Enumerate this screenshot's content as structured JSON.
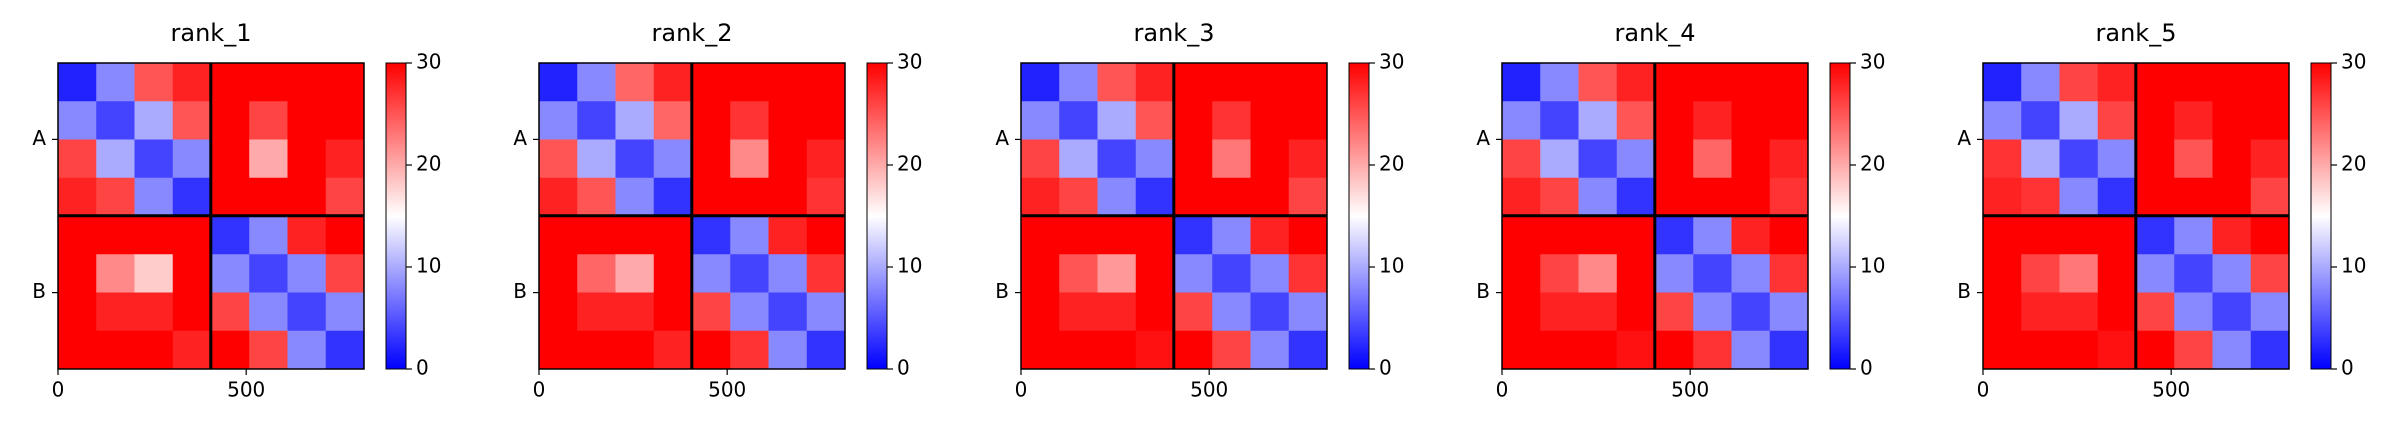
{
  "chart_data": [
    {
      "type": "heatmap",
      "title": "rank_1",
      "xlim": [
        0,
        813
      ],
      "ylim": [
        813,
        0
      ],
      "xticks": [
        0,
        500
      ],
      "yticks": [
        {
          "value": 203,
          "label": "A"
        },
        {
          "value": 610,
          "label": "B"
        }
      ],
      "chain_breaks": [
        406
      ],
      "clim": [
        0,
        30
      ],
      "cticks": [
        0,
        10,
        20,
        30
      ],
      "z": [
        [
          2,
          8,
          25,
          28,
          30,
          30,
          30,
          30
        ],
        [
          8,
          4,
          10,
          25,
          30,
          26,
          30,
          30
        ],
        [
          26,
          10,
          4,
          8,
          30,
          20,
          30,
          28
        ],
        [
          28,
          26,
          8,
          3,
          30,
          30,
          30,
          26
        ],
        [
          30,
          30,
          30,
          30,
          3,
          8,
          28,
          30
        ],
        [
          30,
          22,
          18,
          30,
          8,
          4,
          8,
          26
        ],
        [
          30,
          28,
          28,
          30,
          26,
          8,
          4,
          8
        ],
        [
          30,
          30,
          30,
          28,
          30,
          26,
          8,
          3
        ]
      ]
    },
    {
      "type": "heatmap",
      "title": "rank_2",
      "xlim": [
        0,
        813
      ],
      "ylim": [
        813,
        0
      ],
      "xticks": [
        0,
        500
      ],
      "yticks": [
        {
          "value": 203,
          "label": "A"
        },
        {
          "value": 610,
          "label": "B"
        }
      ],
      "chain_breaks": [
        406
      ],
      "clim": [
        0,
        30
      ],
      "cticks": [
        0,
        10,
        20,
        30
      ],
      "z": [
        [
          2,
          8,
          24,
          28,
          30,
          30,
          30,
          30
        ],
        [
          8,
          4,
          10,
          24,
          30,
          27,
          30,
          30
        ],
        [
          25,
          10,
          4,
          8,
          30,
          22,
          30,
          28
        ],
        [
          28,
          25,
          8,
          3,
          30,
          30,
          30,
          27
        ],
        [
          30,
          30,
          30,
          30,
          3,
          8,
          28,
          30
        ],
        [
          30,
          24,
          20,
          30,
          8,
          4,
          8,
          27
        ],
        [
          30,
          28,
          28,
          30,
          26,
          8,
          4,
          8
        ],
        [
          30,
          30,
          30,
          28,
          30,
          27,
          8,
          3
        ]
      ]
    },
    {
      "type": "heatmap",
      "title": "rank_3",
      "xlim": [
        0,
        813
      ],
      "ylim": [
        813,
        0
      ],
      "xticks": [
        0,
        500
      ],
      "yticks": [
        {
          "value": 203,
          "label": "A"
        },
        {
          "value": 610,
          "label": "B"
        }
      ],
      "chain_breaks": [
        406
      ],
      "clim": [
        0,
        30
      ],
      "cticks": [
        0,
        10,
        20,
        30
      ],
      "z": [
        [
          2,
          8,
          25,
          28,
          30,
          30,
          30,
          30
        ],
        [
          8,
          4,
          10,
          25,
          30,
          27,
          30,
          30
        ],
        [
          26,
          10,
          4,
          8,
          30,
          23,
          30,
          28
        ],
        [
          28,
          26,
          8,
          3,
          30,
          30,
          30,
          26
        ],
        [
          30,
          30,
          30,
          30,
          3,
          8,
          28,
          30
        ],
        [
          30,
          25,
          21,
          30,
          8,
          4,
          8,
          27
        ],
        [
          30,
          28,
          28,
          30,
          26,
          8,
          4,
          8
        ],
        [
          30,
          30,
          30,
          29,
          30,
          26,
          8,
          3
        ]
      ]
    },
    {
      "type": "heatmap",
      "title": "rank_4",
      "xlim": [
        0,
        813
      ],
      "ylim": [
        813,
        0
      ],
      "xticks": [
        0,
        500
      ],
      "yticks": [
        {
          "value": 203,
          "label": "A"
        },
        {
          "value": 610,
          "label": "B"
        }
      ],
      "chain_breaks": [
        406
      ],
      "clim": [
        0,
        30
      ],
      "cticks": [
        0,
        10,
        20,
        30
      ],
      "z": [
        [
          2,
          8,
          25,
          28,
          30,
          30,
          30,
          30
        ],
        [
          8,
          4,
          10,
          25,
          30,
          28,
          30,
          30
        ],
        [
          26,
          10,
          4,
          8,
          30,
          24,
          30,
          28
        ],
        [
          28,
          26,
          8,
          3,
          30,
          30,
          30,
          27
        ],
        [
          30,
          30,
          30,
          30,
          3,
          8,
          28,
          30
        ],
        [
          30,
          26,
          22,
          30,
          8,
          4,
          8,
          27
        ],
        [
          30,
          28,
          28,
          30,
          26,
          8,
          4,
          8
        ],
        [
          30,
          30,
          30,
          29,
          30,
          27,
          8,
          3
        ]
      ]
    },
    {
      "type": "heatmap",
      "title": "rank_5",
      "xlim": [
        0,
        813
      ],
      "ylim": [
        813,
        0
      ],
      "xticks": [
        0,
        500
      ],
      "yticks": [
        {
          "value": 203,
          "label": "A"
        },
        {
          "value": 610,
          "label": "B"
        }
      ],
      "chain_breaks": [
        406
      ],
      "clim": [
        0,
        30
      ],
      "cticks": [
        0,
        10,
        20,
        30
      ],
      "z": [
        [
          2,
          8,
          26,
          28,
          30,
          30,
          30,
          30
        ],
        [
          8,
          4,
          10,
          26,
          30,
          28,
          30,
          30
        ],
        [
          27,
          10,
          4,
          8,
          30,
          25,
          30,
          28
        ],
        [
          28,
          27,
          8,
          3,
          30,
          30,
          30,
          26
        ],
        [
          30,
          30,
          30,
          30,
          3,
          8,
          28,
          30
        ],
        [
          30,
          26,
          23,
          30,
          8,
          4,
          8,
          26
        ],
        [
          30,
          28,
          28,
          30,
          26,
          8,
          4,
          8
        ],
        [
          30,
          30,
          30,
          29,
          30,
          26,
          8,
          3
        ]
      ]
    }
  ]
}
